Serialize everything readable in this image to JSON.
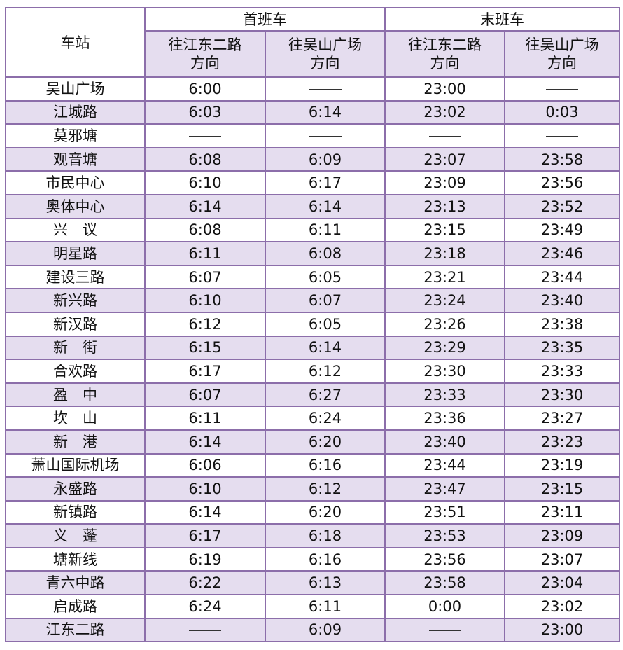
{
  "header": {
    "station": "车站",
    "first_train": "首班车",
    "last_train": "末班车",
    "dir_jiangdong": "往江东二路",
    "dir_wushan": "往吴山广场",
    "dir_suffix": "方向"
  },
  "colors": {
    "border": "#8c6eaa",
    "shade": "#e5ddef"
  },
  "rows": [
    [
      "吴山广场",
      "6:00",
      "—",
      "23:00",
      "—"
    ],
    [
      "江城路",
      "6:03",
      "6:14",
      "23:02",
      "0:03"
    ],
    [
      "莫邪塘",
      "—",
      "—",
      "—",
      "—"
    ],
    [
      "观音塘",
      "6:08",
      "6:09",
      "23:07",
      "23:58"
    ],
    [
      "市民中心",
      "6:10",
      "6:17",
      "23:09",
      "23:56"
    ],
    [
      "奥体中心",
      "6:14",
      "6:14",
      "23:13",
      "23:52"
    ],
    [
      "兴　议",
      "6:08",
      "6:11",
      "23:15",
      "23:49"
    ],
    [
      "明星路",
      "6:11",
      "6:08",
      "23:18",
      "23:46"
    ],
    [
      "建设三路",
      "6:07",
      "6:05",
      "23:21",
      "23:44"
    ],
    [
      "新兴路",
      "6:10",
      "6:07",
      "23:24",
      "23:40"
    ],
    [
      "新汉路",
      "6:12",
      "6:05",
      "23:26",
      "23:38"
    ],
    [
      "新　街",
      "6:15",
      "6:14",
      "23:29",
      "23:35"
    ],
    [
      "合欢路",
      "6:17",
      "6:12",
      "23:30",
      "23:33"
    ],
    [
      "盈　中",
      "6:07",
      "6:27",
      "23:33",
      "23:30"
    ],
    [
      "坎　山",
      "6:11",
      "6:24",
      "23:36",
      "23:27"
    ],
    [
      "新　港",
      "6:14",
      "6:20",
      "23:40",
      "23:23"
    ],
    [
      "萧山国际机场",
      "6:06",
      "6:16",
      "23:44",
      "23:19"
    ],
    [
      "永盛路",
      "6:10",
      "6:12",
      "23:47",
      "23:15"
    ],
    [
      "新镇路",
      "6:14",
      "6:20",
      "23:51",
      "23:11"
    ],
    [
      "义　蓬",
      "6:17",
      "6:18",
      "23:53",
      "23:09"
    ],
    [
      "塘新线",
      "6:19",
      "6:16",
      "23:56",
      "23:07"
    ],
    [
      "青六中路",
      "6:22",
      "6:13",
      "23:58",
      "23:04"
    ],
    [
      "启成路",
      "6:24",
      "6:11",
      "0:00",
      "23:02"
    ],
    [
      "江东二路",
      "—",
      "6:09",
      "—",
      "23:00"
    ]
  ]
}
